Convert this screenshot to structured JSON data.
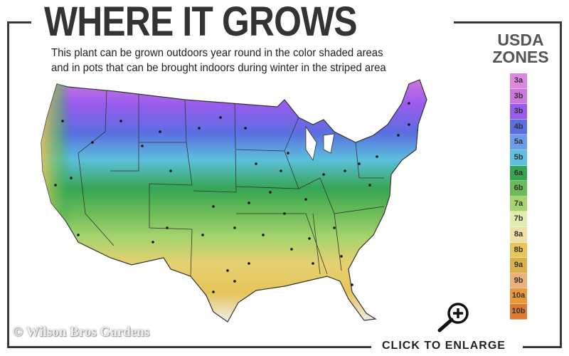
{
  "header": {
    "title": "WHERE IT GROWS",
    "subtitle_line1": "This plant can be grown outdoors year round in the color shaded areas",
    "subtitle_line2": "and in pots that can be brought indoors during winter in the striped area"
  },
  "legend": {
    "title_line1": "USDA",
    "title_line2": "ZONES",
    "zones": [
      {
        "label": "3a",
        "color": "#dd88dd"
      },
      {
        "label": "3b",
        "color": "#cc77dd"
      },
      {
        "label": "3b",
        "color": "#9a5cee"
      },
      {
        "label": "4b",
        "color": "#5a6ee0"
      },
      {
        "label": "5a",
        "color": "#6b9cee"
      },
      {
        "label": "5b",
        "color": "#5cc0dd"
      },
      {
        "label": "6a",
        "color": "#36a552"
      },
      {
        "label": "6b",
        "color": "#6cbb58"
      },
      {
        "label": "7a",
        "color": "#a5d46e"
      },
      {
        "label": "7b",
        "color": "#e2ecb0"
      },
      {
        "label": "8a",
        "color": "#eee0a6"
      },
      {
        "label": "8b",
        "color": "#e6c55a"
      },
      {
        "label": "9a",
        "color": "#d9b04c"
      },
      {
        "label": "9b",
        "color": "#eeb07a"
      },
      {
        "label": "10a",
        "color": "#ec9838"
      },
      {
        "label": "10b",
        "color": "#dd7a33"
      }
    ]
  },
  "footer": {
    "watermark": "© Wilson Bros Gardens",
    "enlarge_label": "CLICK TO ENLARGE",
    "enlarge_icon": "zoom-in-magnifier-icon"
  }
}
